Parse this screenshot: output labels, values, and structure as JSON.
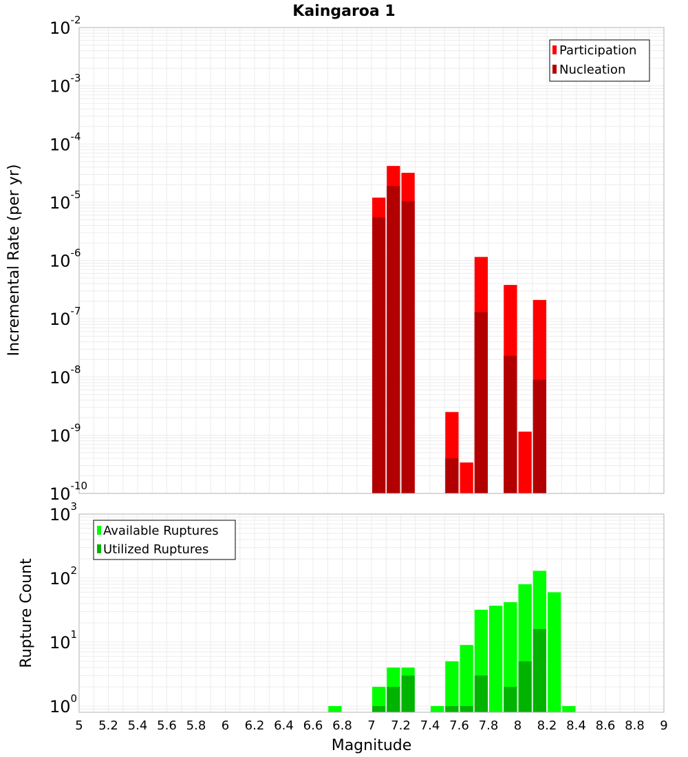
{
  "colors": {
    "participation": "#ff0000",
    "nucleation": "#b20000",
    "available": "#00ff00",
    "utilized": "#00b300",
    "grid": "#ececec",
    "frame": "#b0b0b0"
  },
  "chart_data": [
    {
      "type": "bar",
      "title": "Kaingaroa 1",
      "xlabel": "",
      "ylabel": "Incremental Rate (per yr)",
      "yscale": "log",
      "ylim": [
        1e-10,
        0.01
      ],
      "xlim": [
        5,
        9
      ],
      "bar_width": 0.1,
      "y_ticks": [
        {
          "base": "10",
          "exp": "-10"
        },
        {
          "base": "10",
          "exp": "-9"
        },
        {
          "base": "10",
          "exp": "-8"
        },
        {
          "base": "10",
          "exp": "-7"
        },
        {
          "base": "10",
          "exp": "-6"
        },
        {
          "base": "10",
          "exp": "-5"
        },
        {
          "base": "10",
          "exp": "-4"
        },
        {
          "base": "10",
          "exp": "-3"
        },
        {
          "base": "10",
          "exp": "-2"
        }
      ],
      "legend": {
        "position": "top-right"
      },
      "series": [
        {
          "name": "Participation",
          "x": [
            7.05,
            7.15,
            7.25,
            7.55,
            7.65,
            7.75,
            7.95,
            8.05,
            8.15
          ],
          "values": [
            1.2e-05,
            4.2e-05,
            3.2e-05,
            2.5e-09,
            3.4e-10,
            1.15e-06,
            3.8e-07,
            1.15e-09,
            2.1e-07
          ]
        },
        {
          "name": "Nucleation",
          "x": [
            7.05,
            7.15,
            7.25,
            7.55,
            7.75,
            7.95,
            8.15
          ],
          "values": [
            5.5e-06,
            1.9e-05,
            1.05e-05,
            4e-10,
            1.3e-07,
            2.3e-08,
            9e-09
          ]
        }
      ]
    },
    {
      "type": "bar",
      "xlabel": "Magnitude",
      "ylabel": "Rupture Count",
      "yscale": "log",
      "ylim": [
        0.8,
        1000
      ],
      "xlim": [
        5,
        9
      ],
      "bar_width": 0.1,
      "x_ticks": [
        "5",
        "5.2",
        "5.4",
        "5.6",
        "5.8",
        "6",
        "6.2",
        "6.4",
        "6.6",
        "6.8",
        "7",
        "7.2",
        "7.4",
        "7.6",
        "7.8",
        "8",
        "8.2",
        "8.4",
        "8.6",
        "8.8",
        "9"
      ],
      "y_ticks": [
        {
          "base": "10",
          "exp": "0"
        },
        {
          "base": "10",
          "exp": "1"
        },
        {
          "base": "10",
          "exp": "2"
        },
        {
          "base": "10",
          "exp": "3"
        }
      ],
      "legend": {
        "position": "top-left"
      },
      "series": [
        {
          "name": "Available Ruptures",
          "x": [
            6.75,
            7.05,
            7.15,
            7.25,
            7.45,
            7.55,
            7.65,
            7.75,
            7.85,
            7.95,
            8.05,
            8.15,
            8.25,
            8.35
          ],
          "values": [
            1,
            2,
            4,
            4,
            1,
            5,
            9,
            32,
            37,
            42,
            80,
            130,
            60,
            1
          ]
        },
        {
          "name": "Utilized Ruptures",
          "x": [
            7.05,
            7.15,
            7.25,
            7.55,
            7.65,
            7.75,
            7.95,
            8.05,
            8.15
          ],
          "values": [
            1,
            2,
            3,
            1,
            1,
            3,
            2,
            5,
            16
          ]
        }
      ]
    }
  ]
}
